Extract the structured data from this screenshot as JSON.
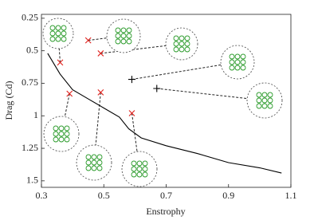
{
  "chart_data": {
    "type": "line",
    "xlabel": "Enstrophy",
    "ylabel": "Drag (Cd)",
    "xlim": [
      0.3,
      1.1
    ],
    "xticks": [
      0.3,
      0.5,
      0.7,
      0.9,
      1.1
    ],
    "ylim": [
      0.22,
      1.55
    ],
    "yticks": [
      0.25,
      0.5,
      0.75,
      1,
      1.25,
      1.5
    ],
    "y_inverted": true,
    "series": [
      {
        "style": "line",
        "color": "#000000",
        "x": [
          0.32,
          0.36,
          0.4,
          0.45,
          0.5,
          0.55,
          0.58,
          0.62,
          0.7,
          0.8,
          0.9,
          1.0,
          1.07
        ],
        "values": [
          0.52,
          0.68,
          0.8,
          0.87,
          0.94,
          1.01,
          1.1,
          1.17,
          1.23,
          1.29,
          1.36,
          1.4,
          1.44
        ]
      },
      {
        "style": "x",
        "color": "#e0201b",
        "x": [
          0.36,
          0.45,
          0.49,
          0.39,
          0.49,
          0.59
        ],
        "values": [
          0.59,
          0.42,
          0.52,
          0.83,
          0.82,
          0.98
        ]
      },
      {
        "style": "+",
        "color": "#000000",
        "x": [
          0.59,
          0.67
        ],
        "values": [
          0.72,
          0.79
        ]
      }
    ]
  }
}
